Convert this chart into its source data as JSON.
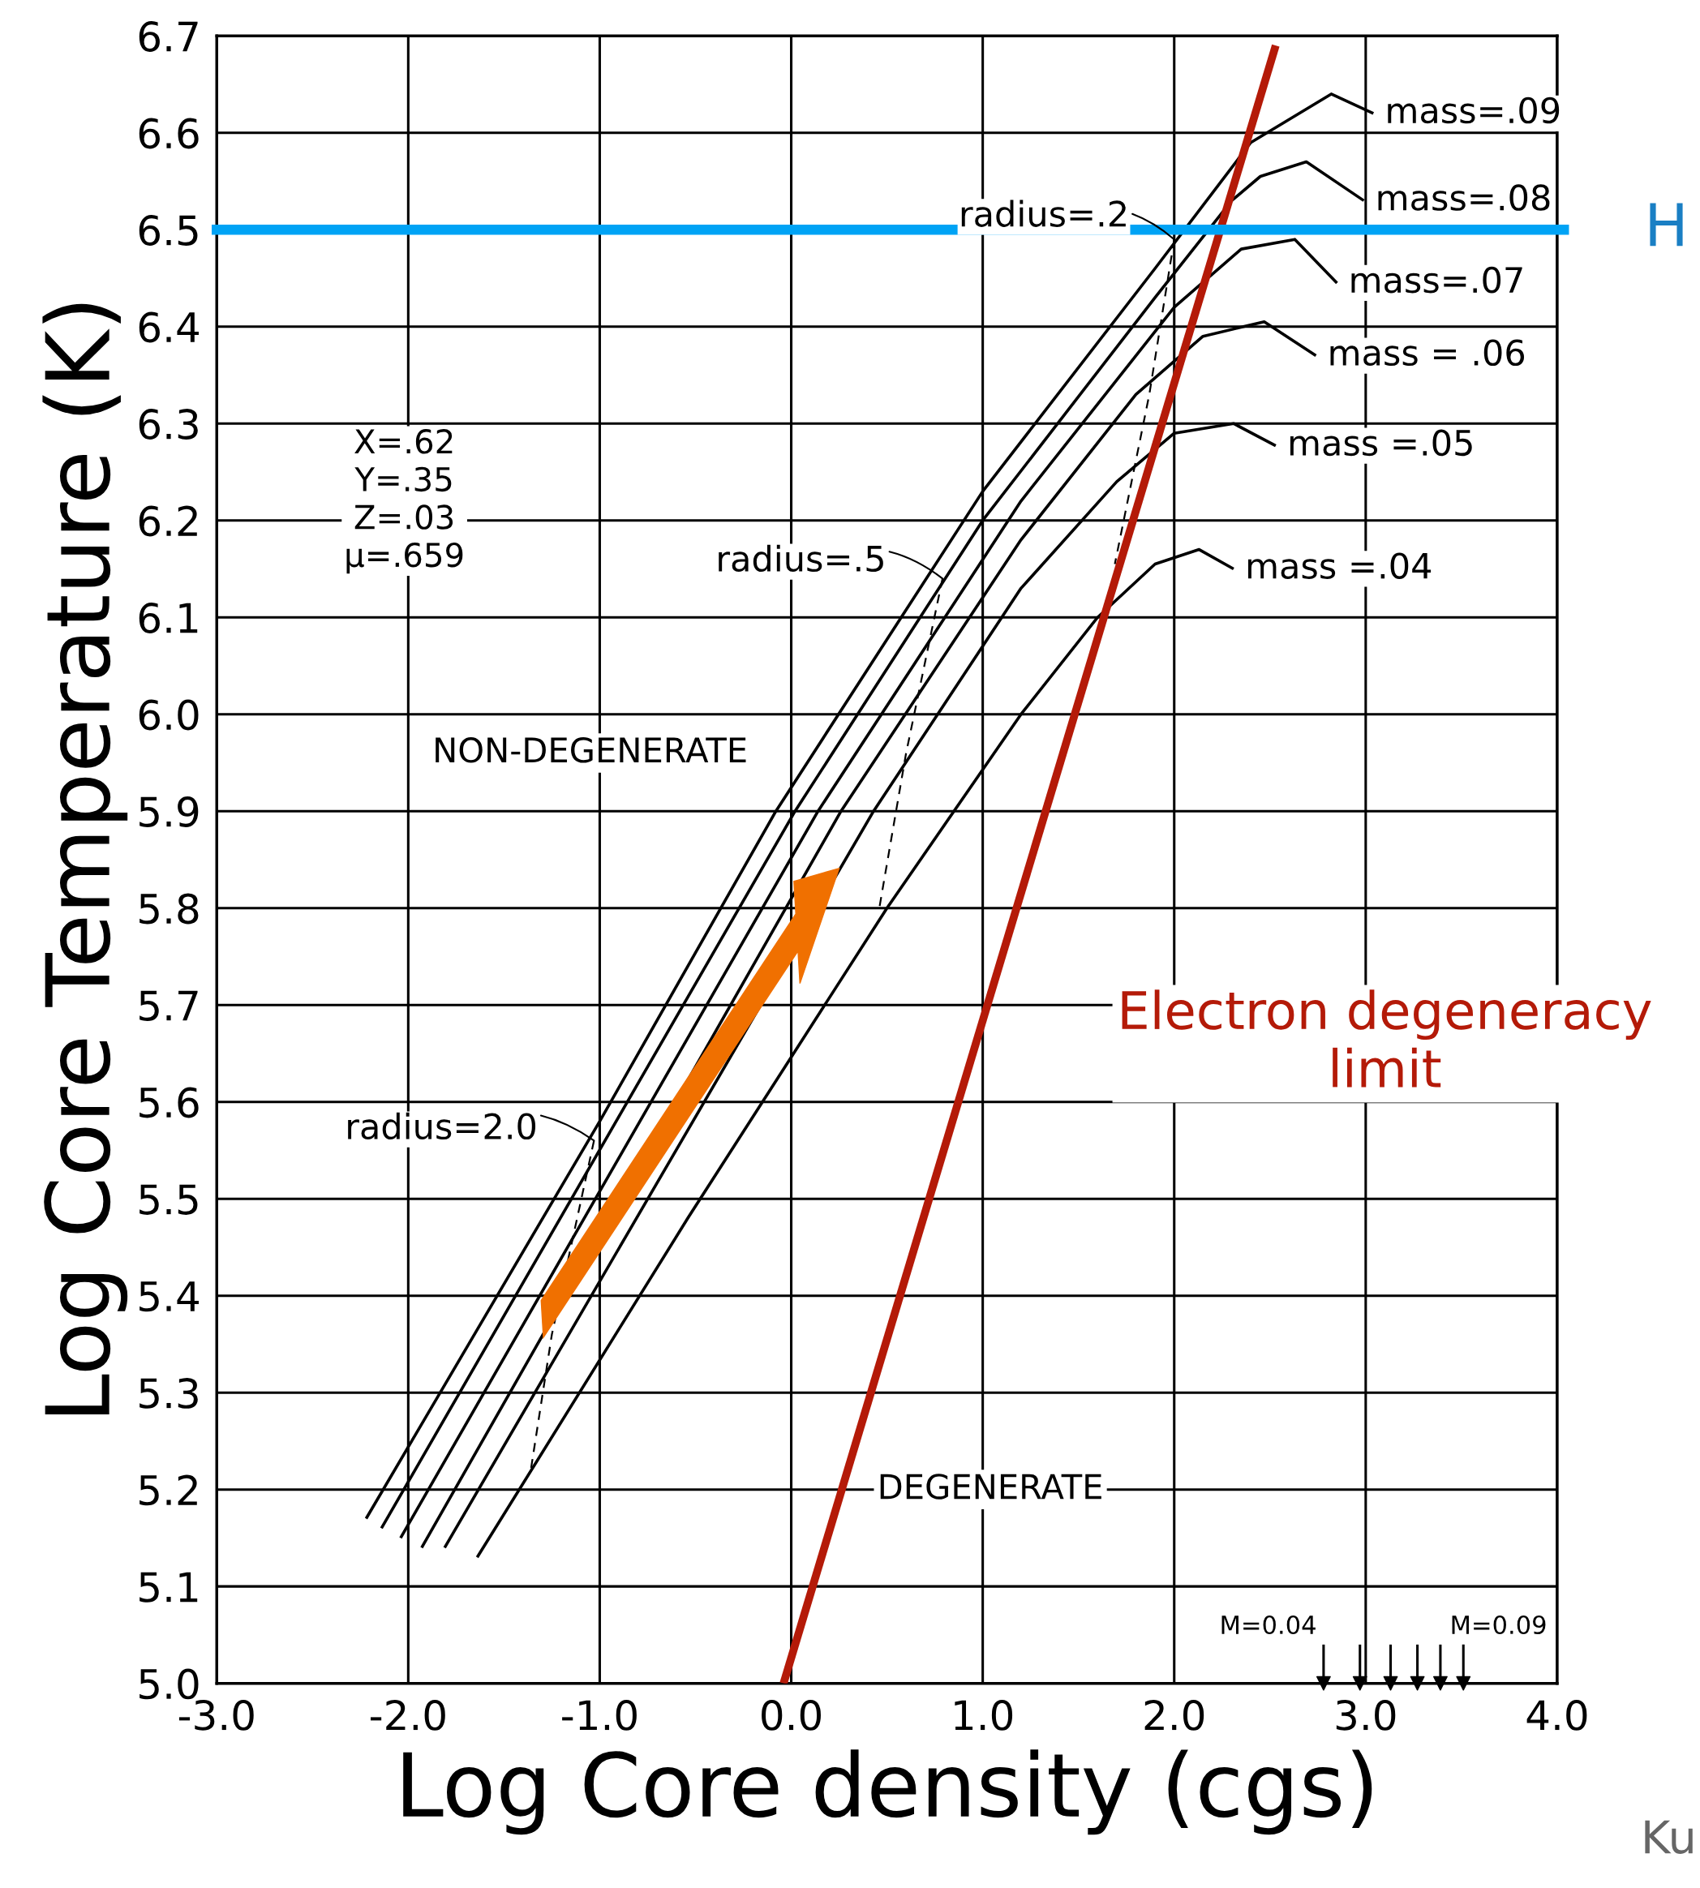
{
  "chart_data": {
    "type": "line",
    "xlabel": "Log Core density (cgs)",
    "ylabel": "Log Core Temperature (K)",
    "xlim": [
      -3.0,
      4.0
    ],
    "ylim": [
      5.0,
      6.7
    ],
    "xticks": [
      {
        "value": -3,
        "label": "-3.0"
      },
      {
        "value": -2,
        "label": "-2.0"
      },
      {
        "value": -1,
        "label": "-1.0"
      },
      {
        "value": 0,
        "label": "0.0"
      },
      {
        "value": 1,
        "label": "1.0"
      },
      {
        "value": 2,
        "label": "2.0"
      },
      {
        "value": 3,
        "label": "3.0"
      },
      {
        "value": 4,
        "label": "4.0"
      }
    ],
    "yticks": [
      {
        "value": 5,
        "label": "5.0"
      },
      5.1,
      5.2,
      5.3,
      5.4,
      5.5,
      5.6,
      5.7,
      5.8,
      5.9,
      {
        "value": 6,
        "label": "6.0"
      },
      6.1,
      6.2,
      6.3,
      6.4,
      6.5,
      6.6,
      6.7
    ],
    "grid": true,
    "marker": "none",
    "line_style": "solid",
    "series": [
      {
        "name": "mass=.09",
        "color": "#000000",
        "x": [
          -2.22,
          -1.0,
          -0.08,
          1.0,
          1.9,
          2.4,
          2.82,
          3.04
        ],
        "values": [
          5.17,
          5.58,
          5.9,
          6.23,
          6.46,
          6.59,
          6.64,
          6.62
        ]
      },
      {
        "name": "mass=.08",
        "color": "#000000",
        "x": [
          -2.14,
          0.02,
          1.0,
          1.9,
          2.3,
          2.45,
          2.69,
          2.99
        ],
        "values": [
          5.16,
          5.9,
          6.2,
          6.43,
          6.53,
          6.555,
          6.57,
          6.53
        ]
      },
      {
        "name": "mass=.07",
        "color": "#000000",
        "x": [
          -2.04,
          0.14,
          1.2,
          2.0,
          2.35,
          2.63,
          2.85
        ],
        "values": [
          5.15,
          5.9,
          6.22,
          6.42,
          6.48,
          6.49,
          6.445
        ]
      },
      {
        "name": "mass = .06",
        "color": "#000000",
        "x": [
          -1.93,
          0.26,
          1.2,
          1.8,
          2.15,
          2.47,
          2.74
        ],
        "values": [
          5.14,
          5.9,
          6.18,
          6.33,
          6.39,
          6.405,
          6.37
        ]
      },
      {
        "name": "mass =.05",
        "color": "#000000",
        "x": [
          -1.81,
          0.43,
          1.2,
          1.7,
          2.0,
          2.31,
          2.53
        ],
        "values": [
          5.14,
          5.9,
          6.13,
          6.24,
          6.29,
          6.3,
          6.277
        ]
      },
      {
        "name": "mass =.04",
        "color": "#000000",
        "x": [
          -1.64,
          -0.54,
          0.5,
          1.2,
          1.6,
          1.9,
          2.13,
          2.31
        ],
        "values": [
          5.13,
          5.48,
          5.8,
          6.0,
          6.1,
          6.155,
          6.17,
          6.15
        ]
      },
      {
        "color": "#000000",
        "line_style": "dashed",
        "x": [
          -1.03,
          -1.25,
          -1.36
        ],
        "values": [
          5.56,
          5.36,
          5.22
        ]
      },
      {
        "color": "#000000",
        "line_style": "dashed",
        "x": [
          0.79,
          0.6,
          0.46
        ],
        "values": [
          6.14,
          5.96,
          5.8
        ]
      },
      {
        "color": "#000000",
        "line_style": "dashed",
        "x": [
          2.0,
          1.87,
          1.69
        ],
        "values": [
          6.49,
          6.33,
          6.155
        ]
      },
      {
        "color": "#b41a08",
        "x": [
          -0.04,
          2.53
        ],
        "values": [
          5.0,
          6.69
        ]
      },
      {
        "type": "scatter",
        "marker": "triangle",
        "color": "#000000",
        "x": [
          2.78,
          2.97,
          3.13,
          3.27,
          3.39,
          3.51
        ],
        "values": [
          5.0,
          5.0,
          5.0,
          5.0,
          5.0,
          5.0
        ]
      }
    ],
    "ref_lines": [
      {
        "axis": "y",
        "value": 6.5,
        "label": "H",
        "color": "#00a3f5"
      }
    ],
    "annotations": [
      {
        "text": "radius=2.0",
        "x": -1.03,
        "y": 5.56
      },
      {
        "text": "radius=.5",
        "x": 0.79,
        "y": 6.14
      },
      {
        "text": "radius=.2",
        "x": 2.0,
        "y": 6.49
      },
      "Electron degeneracy\nlimit",
      "X=.62\nY=.35\nZ=.03\nμ=.659",
      "NON-DEGENERATE",
      "DEGENERATE",
      {
        "text": "M=0.04",
        "x": 2.78,
        "y": 5.0
      },
      {
        "text": "M=0.09",
        "x": 3.51,
        "y": 5.0
      },
      "Ku"
    ]
  }
}
